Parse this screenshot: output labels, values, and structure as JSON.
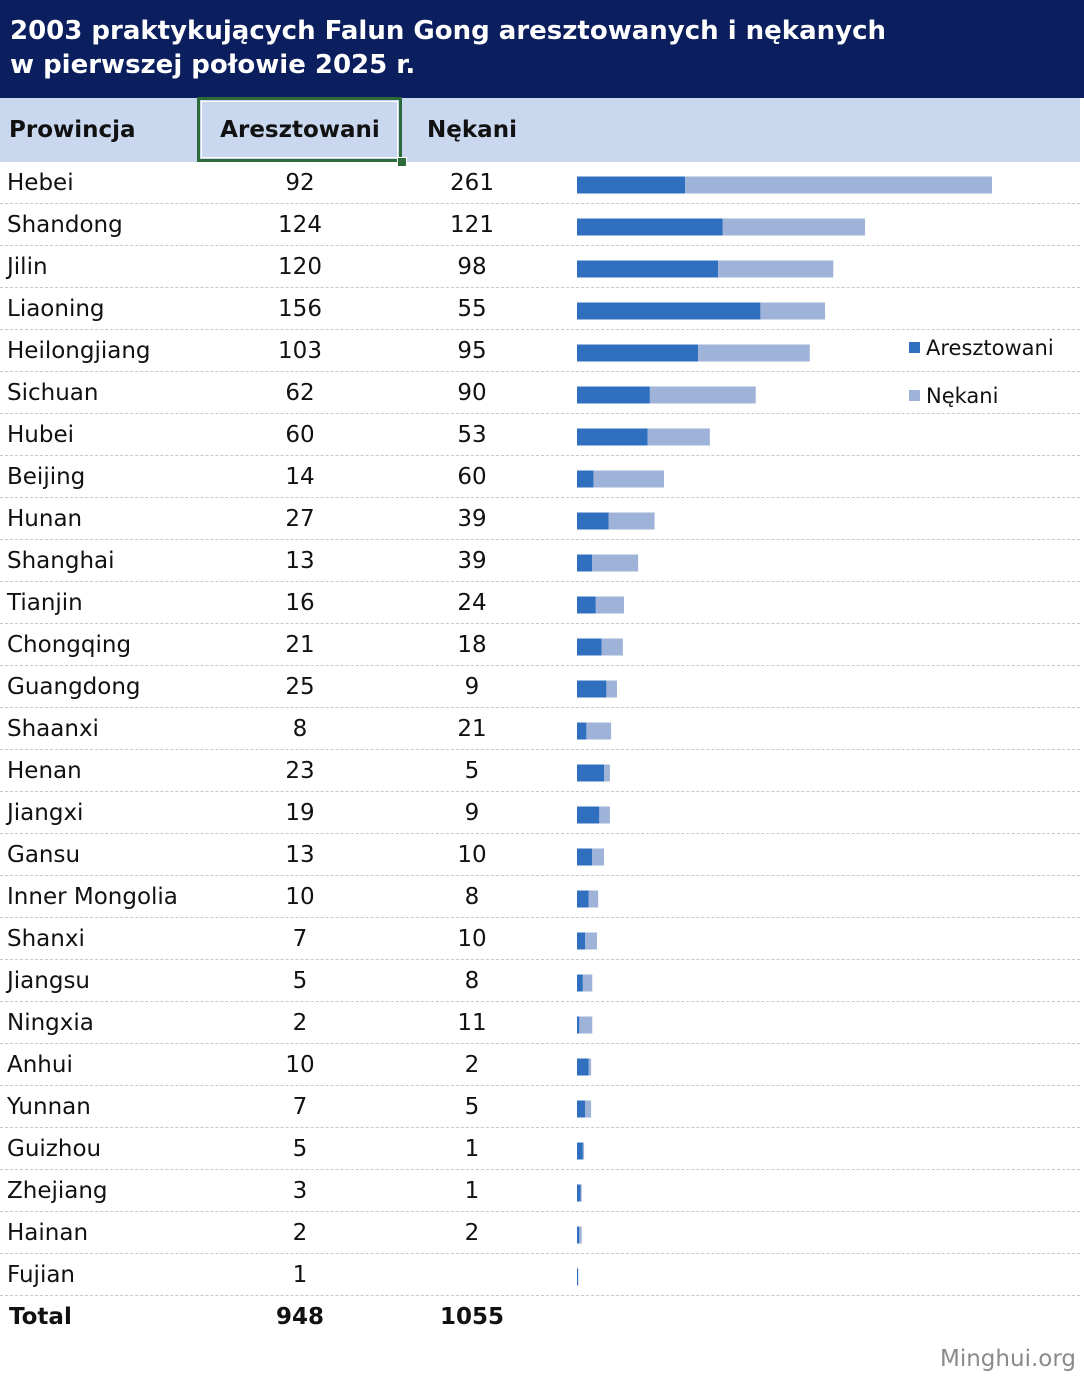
{
  "title": {
    "line1": "2003 praktykujących Falun Gong aresztowanych i nękanych",
    "line2": "w pierwszej połowie 2025 r."
  },
  "headers": {
    "province": "Prowincja",
    "arrested": "Aresztowani",
    "harassed": "Nękani"
  },
  "total": {
    "label": "Total",
    "arrested": "948",
    "harassed": "1055"
  },
  "legend": {
    "arrested": "Aresztowani",
    "harassed": "Nękani"
  },
  "colors": {
    "title_background": "#0b1f5e",
    "header_background": "#c9d7ef",
    "arrested": "#2f6fbf",
    "harassed": "#9fb3d8",
    "selection_border": "#2e6b3a"
  },
  "watermark": "Minghui.org",
  "chart_data": {
    "type": "bar",
    "orientation": "horizontal",
    "stacked": true,
    "legend_position": "right",
    "categories": [
      "Hebei",
      "Shandong",
      "Jilin",
      "Liaoning",
      "Heilongjiang",
      "Sichuan",
      "Hubei",
      "Beijing",
      "Hunan",
      "Shanghai",
      "Tianjin",
      "Chongqing",
      "Guangdong",
      "Shaanxi",
      "Henan",
      "Jiangxi",
      "Gansu",
      "Inner Mongolia",
      "Shanxi",
      "Jiangsu",
      "Ningxia",
      "Anhui",
      "Yunnan",
      "Guizhou",
      "Zhejiang",
      "Hainan",
      "Fujian"
    ],
    "series": [
      {
        "name": "Aresztowani",
        "values": [
          92,
          124,
          120,
          156,
          103,
          62,
          60,
          14,
          27,
          13,
          16,
          21,
          25,
          8,
          23,
          19,
          13,
          10,
          7,
          5,
          2,
          10,
          7,
          5,
          3,
          2,
          1
        ],
        "labels": [
          "92",
          "124",
          "120",
          "156",
          "103",
          "62",
          "60",
          "14",
          "27",
          "13",
          "16",
          "21",
          "25",
          "8",
          "23",
          "19",
          "13",
          "10",
          "7",
          "5",
          "2",
          "10",
          "7",
          "5",
          "3",
          "2",
          "1"
        ]
      },
      {
        "name": "Nękani",
        "values": [
          261,
          121,
          98,
          55,
          95,
          90,
          53,
          60,
          39,
          39,
          24,
          18,
          9,
          21,
          5,
          9,
          10,
          8,
          10,
          8,
          11,
          2,
          5,
          1,
          1,
          2,
          0
        ],
        "labels": [
          "261",
          "121",
          "98",
          "55",
          "95",
          "90",
          "53",
          "60",
          "39",
          "39",
          "24",
          "18",
          "9",
          "21",
          "5",
          "9",
          "10",
          "8",
          "10",
          "8",
          "11",
          "2",
          "5",
          "1",
          "1",
          "2",
          ""
        ]
      }
    ],
    "grid": false
  }
}
